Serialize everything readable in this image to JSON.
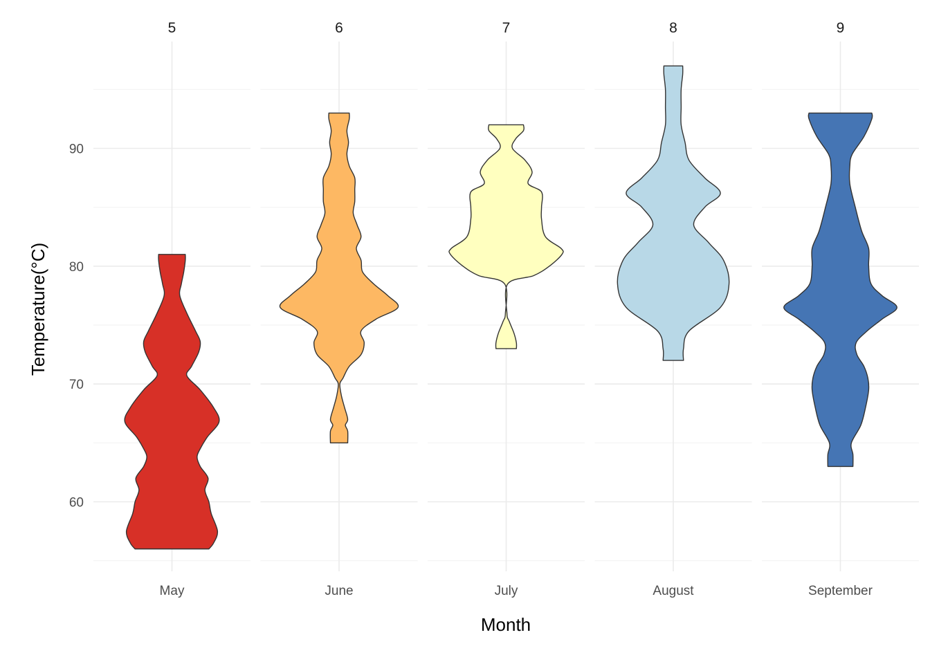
{
  "chart_data": {
    "type": "violin",
    "xlabel": "Month",
    "ylabel": "Temperature(°C)",
    "ylim": [
      55,
      97
    ],
    "yticks": [
      60,
      70,
      80,
      90
    ],
    "grid": true,
    "panels": [
      {
        "strip": "5",
        "category": "May",
        "color": "#d73027",
        "min": 56,
        "max": 81,
        "profile": [
          [
            56,
            0.47
          ],
          [
            56.5,
            0.53
          ],
          [
            57.5,
            0.58
          ],
          [
            59,
            0.5
          ],
          [
            60,
            0.47
          ],
          [
            61,
            0.42
          ],
          [
            62,
            0.46
          ],
          [
            63,
            0.36
          ],
          [
            63.8,
            0.32
          ],
          [
            64.5,
            0.36
          ],
          [
            65.5,
            0.45
          ],
          [
            66.8,
            0.6
          ],
          [
            68,
            0.53
          ],
          [
            69.5,
            0.36
          ],
          [
            70.7,
            0.19
          ],
          [
            71.5,
            0.25
          ],
          [
            72.7,
            0.34
          ],
          [
            73.6,
            0.36
          ],
          [
            74.5,
            0.3
          ],
          [
            76,
            0.19
          ],
          [
            77.5,
            0.1
          ],
          [
            78.5,
            0.12
          ],
          [
            79.5,
            0.15
          ],
          [
            80.5,
            0.17
          ],
          [
            81,
            0.17
          ]
        ]
      },
      {
        "strip": "6",
        "category": "June",
        "color": "#fdb863",
        "min": 65,
        "max": 93,
        "profile": [
          [
            65,
            0.11
          ],
          [
            66,
            0.11
          ],
          [
            66.5,
            0.08
          ],
          [
            67,
            0.11
          ],
          [
            68,
            0.07
          ],
          [
            69,
            0.03
          ],
          [
            70,
            0.01
          ],
          [
            70.5,
            0.05
          ],
          [
            71.5,
            0.13
          ],
          [
            72.5,
            0.28
          ],
          [
            73.5,
            0.32
          ],
          [
            74.5,
            0.28
          ],
          [
            75.5,
            0.47
          ],
          [
            76.5,
            0.75
          ],
          [
            77.5,
            0.62
          ],
          [
            78.5,
            0.44
          ],
          [
            79.5,
            0.3
          ],
          [
            80.5,
            0.28
          ],
          [
            81.5,
            0.22
          ],
          [
            82.5,
            0.28
          ],
          [
            83.5,
            0.23
          ],
          [
            84.5,
            0.18
          ],
          [
            85.5,
            0.2
          ],
          [
            86.5,
            0.2
          ],
          [
            87.5,
            0.2
          ],
          [
            88.5,
            0.13
          ],
          [
            89.5,
            0.1
          ],
          [
            90.5,
            0.12
          ],
          [
            91.5,
            0.1
          ],
          [
            92.5,
            0.13
          ],
          [
            93,
            0.13
          ]
        ]
      },
      {
        "strip": "7",
        "category": "July",
        "color": "#ffffbf",
        "min": 73,
        "max": 92,
        "profile": [
          [
            73,
            0.13
          ],
          [
            73.5,
            0.13
          ],
          [
            74.3,
            0.1
          ],
          [
            75.3,
            0.04
          ],
          [
            76,
            0.01
          ],
          [
            78.5,
            0.02
          ],
          [
            79.2,
            0.35
          ],
          [
            80,
            0.55
          ],
          [
            81,
            0.71
          ],
          [
            81.5,
            0.7
          ],
          [
            82.5,
            0.5
          ],
          [
            84,
            0.45
          ],
          [
            85,
            0.45
          ],
          [
            86.3,
            0.45
          ],
          [
            87,
            0.28
          ],
          [
            88,
            0.33
          ],
          [
            89,
            0.24
          ],
          [
            90,
            0.08
          ],
          [
            90.8,
            0.12
          ],
          [
            91.5,
            0.22
          ],
          [
            92,
            0.22
          ]
        ]
      },
      {
        "strip": "8",
        "category": "August",
        "color": "#b8d8e7",
        "min": 72,
        "max": 97,
        "profile": [
          [
            72,
            0.13
          ],
          [
            73,
            0.13
          ],
          [
            74.5,
            0.2
          ],
          [
            76.5,
            0.6
          ],
          [
            78.5,
            0.71
          ],
          [
            80.5,
            0.64
          ],
          [
            82,
            0.45
          ],
          [
            83.5,
            0.26
          ],
          [
            85,
            0.4
          ],
          [
            86.2,
            0.6
          ],
          [
            87.5,
            0.4
          ],
          [
            89,
            0.2
          ],
          [
            90.5,
            0.15
          ],
          [
            92,
            0.1
          ],
          [
            93.5,
            0.1
          ],
          [
            95,
            0.1
          ],
          [
            96.3,
            0.12
          ],
          [
            97,
            0.12
          ]
        ]
      },
      {
        "strip": "9",
        "category": "September",
        "color": "#4575b4",
        "min": 63,
        "max": 93,
        "profile": [
          [
            63,
            0.16
          ],
          [
            64,
            0.16
          ],
          [
            65,
            0.14
          ],
          [
            66.5,
            0.26
          ],
          [
            68,
            0.32
          ],
          [
            69.5,
            0.36
          ],
          [
            70.5,
            0.35
          ],
          [
            71.5,
            0.3
          ],
          [
            72.5,
            0.21
          ],
          [
            73.5,
            0.2
          ],
          [
            74.5,
            0.34
          ],
          [
            75.5,
            0.53
          ],
          [
            76.5,
            0.72
          ],
          [
            77.5,
            0.53
          ],
          [
            78.5,
            0.39
          ],
          [
            80,
            0.36
          ],
          [
            81.5,
            0.36
          ],
          [
            83,
            0.27
          ],
          [
            85,
            0.19
          ],
          [
            87,
            0.12
          ],
          [
            88.5,
            0.12
          ],
          [
            89.5,
            0.15
          ],
          [
            91,
            0.3
          ],
          [
            92.5,
            0.4
          ],
          [
            93,
            0.4
          ]
        ]
      }
    ]
  }
}
